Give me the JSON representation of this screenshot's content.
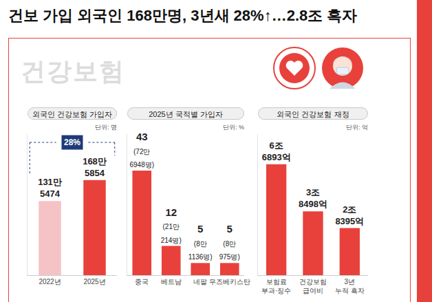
{
  "title": "건보 가입 외국인 168만명, 3년새 28%↑…2.8조 흑자",
  "watermark": "건강보험",
  "chart_data": [
    {
      "type": "bar",
      "title": "외국인 건강보험 가입자",
      "subtitle": "단위: 명",
      "categories": [
        "2022년",
        "2025년"
      ],
      "values": [
        1315474,
        1685854
      ],
      "value_labels": [
        "131만 5474",
        "168만 5854"
      ],
      "colors": [
        "#f5c3c6",
        "#e8413c"
      ],
      "data_labels": true,
      "annotations": [
        "28%"
      ],
      "ylim": [
        0,
        2500000
      ],
      "yticks": [],
      "tick_labels": "x",
      "grid": false
    },
    {
      "type": "bar",
      "title": "2025년 국적별 가입자",
      "subtitle": "단위: %",
      "categories": [
        "중국",
        "베트남",
        "네팔",
        "우즈베키스탄"
      ],
      "values": [
        43,
        12,
        5,
        5
      ],
      "counts": [
        726948,
        210214,
        81136,
        80975
      ],
      "count_labels": [
        "(72만 6948명)",
        "(21만 214명)",
        "(8만 1136명)",
        "(8만 975명)"
      ],
      "color": "#e8413c",
      "data_labels": true,
      "ylim": [
        0,
        58
      ],
      "yticks": [],
      "tick_labels": "x",
      "grid": false
    },
    {
      "type": "bar",
      "title": "외국인 건강보험 재정",
      "subtitle": "단위: 억",
      "categories": [
        "보험료 부과·징수",
        "건강보험 급여비",
        "3년 누적 흑자"
      ],
      "values": [
        66893,
        38498,
        28395
      ],
      "value_labels": [
        "6조 6893억",
        "3조 8498억",
        "2조 8395억"
      ],
      "color": "#e8413c",
      "data_labels": true,
      "ylim": [
        0,
        85000
      ],
      "yticks": [],
      "tick_labels": "x",
      "grid": false
    }
  ]
}
